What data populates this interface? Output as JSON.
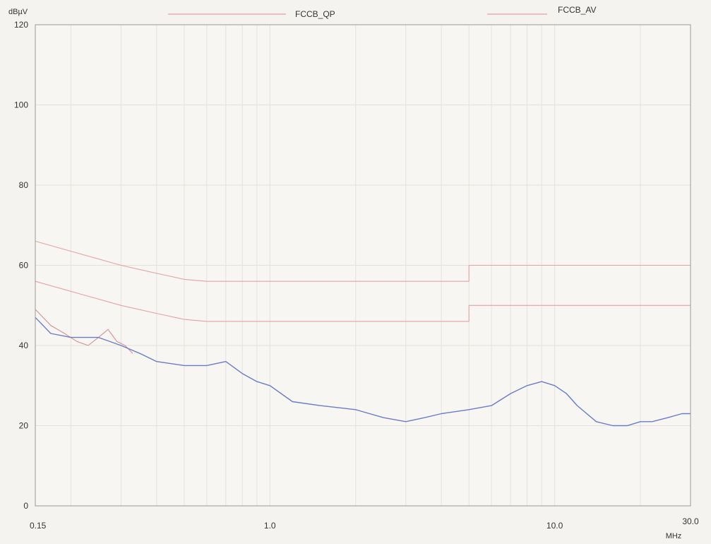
{
  "chart_data": {
    "type": "line",
    "x_scale": "log",
    "xlim": [
      0.15,
      30.0
    ],
    "ylim": [
      0,
      120
    ],
    "grid": true,
    "y_unit_label": "dBµV",
    "x_unit_label": "MHz",
    "x_ticks": [
      {
        "value": 0.15,
        "label": "0.15"
      },
      {
        "value": 1.0,
        "label": "1.0"
      },
      {
        "value": 10.0,
        "label": "10.0"
      },
      {
        "value": 30.0,
        "label": "30.0"
      }
    ],
    "y_ticks": [
      {
        "value": 0,
        "label": "0"
      },
      {
        "value": 20,
        "label": "20"
      },
      {
        "value": 40,
        "label": "40"
      },
      {
        "value": 60,
        "label": "60"
      },
      {
        "value": 80,
        "label": "80"
      },
      {
        "value": 100,
        "label": "100"
      },
      {
        "value": 120,
        "label": "120"
      }
    ],
    "legend": [
      {
        "label": "FCCB_QP",
        "color": "#e8a0a0"
      },
      {
        "label": "FCCB_AV",
        "color": "#e8a0a0"
      }
    ],
    "series": [
      {
        "color": "#e8a0a0",
        "x": [
          0.15,
          0.2,
          0.3,
          0.4,
          0.5,
          0.6,
          5.0,
          5.0,
          30.0
        ],
        "y": [
          66.0,
          63.5,
          60.0,
          58.0,
          56.5,
          56.0,
          56.0,
          60.0,
          60.0
        ]
      },
      {
        "color": "#e8a0a0",
        "x": [
          0.15,
          0.2,
          0.3,
          0.4,
          0.5,
          0.6,
          5.0,
          5.0,
          30.0
        ],
        "y": [
          56.0,
          53.5,
          50.0,
          48.0,
          46.5,
          46.0,
          46.0,
          50.0,
          50.0
        ]
      },
      {
        "color": "#d99090",
        "x": [
          0.15,
          0.17,
          0.19,
          0.21,
          0.23,
          0.25,
          0.27,
          0.29,
          0.31,
          0.33
        ],
        "y": [
          49.0,
          45.0,
          43.0,
          41.0,
          40.0,
          42.0,
          44.0,
          41.0,
          40.0,
          38.0
        ]
      },
      {
        "color": "#6a7cc8",
        "x": [
          0.15,
          0.17,
          0.2,
          0.25,
          0.3,
          0.35,
          0.4,
          0.5,
          0.6,
          0.7,
          0.8,
          0.9,
          1.0,
          1.2,
          1.5,
          2.0,
          2.5,
          3.0,
          3.5,
          4.0,
          5.0,
          6.0,
          7.0,
          8.0,
          9.0,
          10.0,
          11.0,
          12.0,
          14.0,
          16.0,
          18.0,
          20.0,
          22.0,
          25.0,
          28.0,
          30.0
        ],
        "y": [
          47.0,
          43.0,
          42.0,
          42.0,
          40.0,
          38.0,
          36.0,
          35.0,
          35.0,
          36.0,
          33.0,
          31.0,
          30.0,
          26.0,
          25.0,
          24.0,
          22.0,
          21.0,
          22.0,
          23.0,
          24.0,
          25.0,
          28.0,
          30.0,
          31.0,
          30.0,
          28.0,
          25.0,
          21.0,
          20.0,
          20.0,
          21.0,
          21.0,
          22.0,
          23.0,
          23.0
        ]
      }
    ]
  }
}
